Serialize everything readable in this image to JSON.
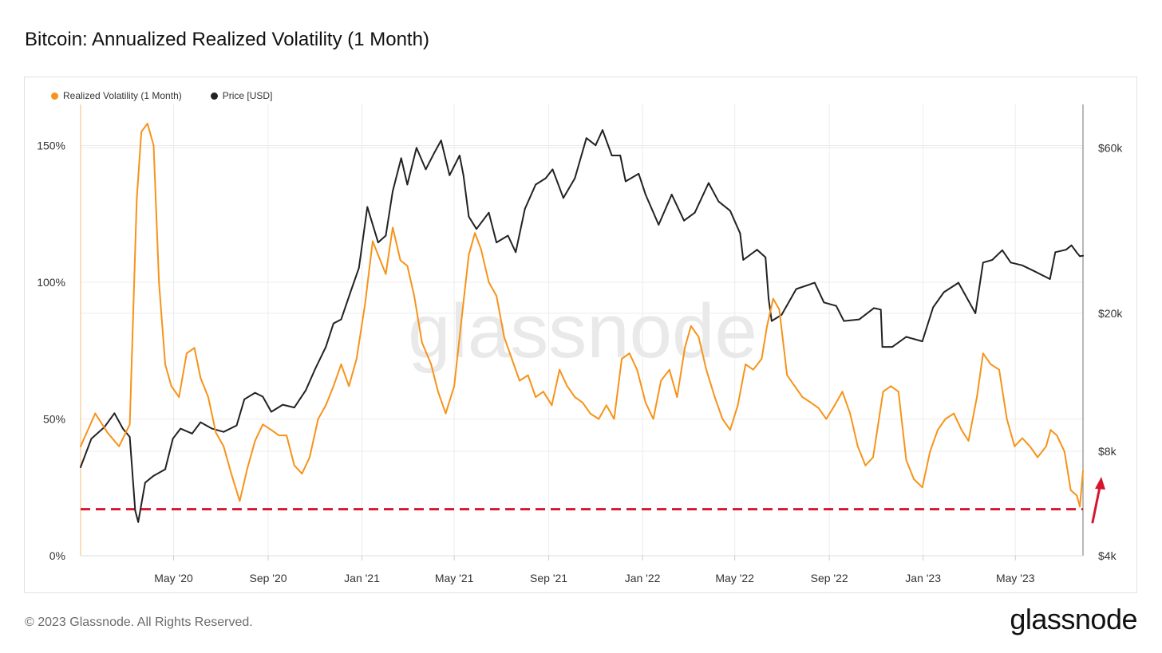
{
  "title": "Bitcoin: Annualized Realized Volatility (1 Month)",
  "footer": "© 2023 Glassnode. All Rights Reserved.",
  "brand": "glassnode",
  "watermark": "glassnode",
  "colors": {
    "volatility": "#f7931a",
    "price": "#222222",
    "threshold": "#d6152e",
    "arrow": "#d6152e",
    "grid": "#ececec"
  },
  "chart_data": {
    "type": "line",
    "grid": true,
    "legend_position": "top-left",
    "x_ticks": [
      "May '20",
      "Sep '20",
      "Jan '21",
      "May '21",
      "Sep '21",
      "Jan '22",
      "May '22",
      "Sep '22",
      "Jan '23",
      "May '23"
    ],
    "x_tick_dates": [
      "2020-05-01",
      "2020-09-01",
      "2021-01-01",
      "2021-05-01",
      "2021-09-01",
      "2022-01-01",
      "2022-05-01",
      "2022-09-01",
      "2023-01-01",
      "2023-05-01"
    ],
    "x_range": [
      "2020-01-01",
      "2023-07-28"
    ],
    "y_left": {
      "ticks": [
        "0%",
        "50%",
        "100%",
        "150%"
      ],
      "tick_values": [
        0,
        50,
        100,
        150
      ],
      "range": [
        0,
        165
      ]
    },
    "y_right": {
      "scale": "log",
      "ticks": [
        "$4k",
        "$8k",
        "$20k",
        "$60k"
      ],
      "tick_values": [
        4000,
        8000,
        20000,
        60000
      ],
      "range": [
        4000,
        80000
      ]
    },
    "threshold": {
      "value": 17,
      "axis": "left",
      "style": "dashed"
    },
    "series": [
      {
        "name": "Realized Volatility (1 Month)",
        "axis": "left",
        "points": [
          [
            "2020-01-01",
            40
          ],
          [
            "2020-01-20",
            52
          ],
          [
            "2020-02-05",
            45
          ],
          [
            "2020-02-20",
            40
          ],
          [
            "2020-03-05",
            48
          ],
          [
            "2020-03-14",
            130
          ],
          [
            "2020-03-20",
            155
          ],
          [
            "2020-03-28",
            158
          ],
          [
            "2020-04-05",
            150
          ],
          [
            "2020-04-12",
            100
          ],
          [
            "2020-04-20",
            70
          ],
          [
            "2020-04-28",
            62
          ],
          [
            "2020-05-08",
            58
          ],
          [
            "2020-05-18",
            74
          ],
          [
            "2020-05-28",
            76
          ],
          [
            "2020-06-05",
            65
          ],
          [
            "2020-06-15",
            58
          ],
          [
            "2020-06-25",
            45
          ],
          [
            "2020-07-05",
            40
          ],
          [
            "2020-07-15",
            30
          ],
          [
            "2020-07-26",
            20
          ],
          [
            "2020-08-05",
            32
          ],
          [
            "2020-08-15",
            42
          ],
          [
            "2020-08-25",
            48
          ],
          [
            "2020-09-05",
            46
          ],
          [
            "2020-09-15",
            44
          ],
          [
            "2020-09-25",
            44
          ],
          [
            "2020-10-05",
            33
          ],
          [
            "2020-10-15",
            30
          ],
          [
            "2020-10-25",
            36
          ],
          [
            "2020-11-05",
            50
          ],
          [
            "2020-11-15",
            55
          ],
          [
            "2020-11-25",
            62
          ],
          [
            "2020-12-05",
            70
          ],
          [
            "2020-12-15",
            62
          ],
          [
            "2020-12-25",
            72
          ],
          [
            "2021-01-05",
            92
          ],
          [
            "2021-01-15",
            115
          ],
          [
            "2021-01-22",
            110
          ],
          [
            "2021-02-01",
            103
          ],
          [
            "2021-02-10",
            120
          ],
          [
            "2021-02-20",
            108
          ],
          [
            "2021-03-01",
            106
          ],
          [
            "2021-03-10",
            95
          ],
          [
            "2021-03-20",
            78
          ],
          [
            "2021-04-01",
            70
          ],
          [
            "2021-04-10",
            60
          ],
          [
            "2021-04-20",
            52
          ],
          [
            "2021-05-01",
            62
          ],
          [
            "2021-05-12",
            90
          ],
          [
            "2021-05-20",
            110
          ],
          [
            "2021-05-28",
            118
          ],
          [
            "2021-06-05",
            112
          ],
          [
            "2021-06-15",
            100
          ],
          [
            "2021-06-25",
            95
          ],
          [
            "2021-07-05",
            80
          ],
          [
            "2021-07-15",
            72
          ],
          [
            "2021-07-25",
            64
          ],
          [
            "2021-08-05",
            66
          ],
          [
            "2021-08-15",
            58
          ],
          [
            "2021-08-25",
            60
          ],
          [
            "2021-09-05",
            55
          ],
          [
            "2021-09-15",
            68
          ],
          [
            "2021-09-25",
            62
          ],
          [
            "2021-10-05",
            58
          ],
          [
            "2021-10-15",
            56
          ],
          [
            "2021-10-25",
            52
          ],
          [
            "2021-11-05",
            50
          ],
          [
            "2021-11-15",
            55
          ],
          [
            "2021-11-25",
            50
          ],
          [
            "2021-12-05",
            72
          ],
          [
            "2021-12-15",
            74
          ],
          [
            "2021-12-25",
            68
          ],
          [
            "2022-01-05",
            56
          ],
          [
            "2022-01-15",
            50
          ],
          [
            "2022-01-25",
            64
          ],
          [
            "2022-02-05",
            68
          ],
          [
            "2022-02-15",
            58
          ],
          [
            "2022-02-25",
            76
          ],
          [
            "2022-03-05",
            84
          ],
          [
            "2022-03-15",
            80
          ],
          [
            "2022-03-25",
            68
          ],
          [
            "2022-04-05",
            58
          ],
          [
            "2022-04-15",
            50
          ],
          [
            "2022-04-25",
            46
          ],
          [
            "2022-05-05",
            55
          ],
          [
            "2022-05-15",
            70
          ],
          [
            "2022-05-25",
            68
          ],
          [
            "2022-06-05",
            72
          ],
          [
            "2022-06-12",
            84
          ],
          [
            "2022-06-20",
            94
          ],
          [
            "2022-06-28",
            90
          ],
          [
            "2022-07-08",
            66
          ],
          [
            "2022-07-18",
            62
          ],
          [
            "2022-07-28",
            58
          ],
          [
            "2022-08-08",
            56
          ],
          [
            "2022-08-18",
            54
          ],
          [
            "2022-08-28",
            50
          ],
          [
            "2022-09-08",
            55
          ],
          [
            "2022-09-18",
            60
          ],
          [
            "2022-09-28",
            52
          ],
          [
            "2022-10-08",
            40
          ],
          [
            "2022-10-18",
            33
          ],
          [
            "2022-10-28",
            36
          ],
          [
            "2022-11-10",
            60
          ],
          [
            "2022-11-20",
            62
          ],
          [
            "2022-11-30",
            60
          ],
          [
            "2022-12-10",
            35
          ],
          [
            "2022-12-20",
            28
          ],
          [
            "2022-12-31",
            25
          ],
          [
            "2023-01-10",
            38
          ],
          [
            "2023-01-20",
            46
          ],
          [
            "2023-01-30",
            50
          ],
          [
            "2023-02-10",
            52
          ],
          [
            "2023-02-20",
            46
          ],
          [
            "2023-03-01",
            42
          ],
          [
            "2023-03-12",
            58
          ],
          [
            "2023-03-20",
            74
          ],
          [
            "2023-03-30",
            70
          ],
          [
            "2023-04-10",
            68
          ],
          [
            "2023-04-20",
            50
          ],
          [
            "2023-04-30",
            40
          ],
          [
            "2023-05-10",
            43
          ],
          [
            "2023-05-20",
            40
          ],
          [
            "2023-05-30",
            36
          ],
          [
            "2023-06-10",
            40
          ],
          [
            "2023-06-16",
            46
          ],
          [
            "2023-06-24",
            44
          ],
          [
            "2023-07-04",
            38
          ],
          [
            "2023-07-12",
            24
          ],
          [
            "2023-07-20",
            22
          ],
          [
            "2023-07-24",
            18
          ],
          [
            "2023-07-28",
            31
          ]
        ]
      },
      {
        "name": "Price [USD]",
        "axis": "right",
        "points": [
          [
            "2020-01-01",
            7200
          ],
          [
            "2020-01-15",
            8700
          ],
          [
            "2020-02-01",
            9400
          ],
          [
            "2020-02-14",
            10300
          ],
          [
            "2020-02-25",
            9300
          ],
          [
            "2020-03-05",
            8800
          ],
          [
            "2020-03-12",
            5400
          ],
          [
            "2020-03-16",
            5000
          ],
          [
            "2020-03-25",
            6500
          ],
          [
            "2020-04-05",
            6800
          ],
          [
            "2020-04-20",
            7100
          ],
          [
            "2020-04-30",
            8700
          ],
          [
            "2020-05-10",
            9300
          ],
          [
            "2020-05-25",
            9000
          ],
          [
            "2020-06-05",
            9700
          ],
          [
            "2020-06-20",
            9300
          ],
          [
            "2020-07-05",
            9100
          ],
          [
            "2020-07-22",
            9500
          ],
          [
            "2020-08-01",
            11300
          ],
          [
            "2020-08-15",
            11800
          ],
          [
            "2020-08-25",
            11500
          ],
          [
            "2020-09-05",
            10400
          ],
          [
            "2020-09-20",
            10900
          ],
          [
            "2020-10-05",
            10700
          ],
          [
            "2020-10-20",
            12000
          ],
          [
            "2020-11-01",
            13800
          ],
          [
            "2020-11-15",
            16000
          ],
          [
            "2020-11-25",
            18700
          ],
          [
            "2020-12-05",
            19200
          ],
          [
            "2020-12-17",
            23000
          ],
          [
            "2020-12-28",
            27000
          ],
          [
            "2021-01-08",
            40500
          ],
          [
            "2021-01-22",
            32000
          ],
          [
            "2021-02-01",
            33500
          ],
          [
            "2021-02-10",
            45000
          ],
          [
            "2021-02-21",
            56000
          ],
          [
            "2021-03-01",
            47000
          ],
          [
            "2021-03-13",
            60000
          ],
          [
            "2021-03-25",
            52000
          ],
          [
            "2021-04-05",
            58000
          ],
          [
            "2021-04-14",
            63000
          ],
          [
            "2021-04-25",
            50000
          ],
          [
            "2021-05-08",
            57000
          ],
          [
            "2021-05-13",
            50000
          ],
          [
            "2021-05-20",
            38000
          ],
          [
            "2021-05-30",
            35000
          ],
          [
            "2021-06-15",
            39000
          ],
          [
            "2021-06-25",
            32000
          ],
          [
            "2021-07-10",
            33500
          ],
          [
            "2021-07-20",
            30000
          ],
          [
            "2021-08-01",
            40000
          ],
          [
            "2021-08-15",
            47000
          ],
          [
            "2021-08-28",
            49000
          ],
          [
            "2021-09-06",
            52000
          ],
          [
            "2021-09-20",
            43000
          ],
          [
            "2021-10-05",
            49000
          ],
          [
            "2021-10-20",
            64000
          ],
          [
            "2021-11-01",
            61000
          ],
          [
            "2021-11-10",
            67500
          ],
          [
            "2021-11-22",
            57000
          ],
          [
            "2021-12-03",
            57000
          ],
          [
            "2021-12-10",
            48000
          ],
          [
            "2021-12-27",
            50500
          ],
          [
            "2022-01-05",
            44000
          ],
          [
            "2022-01-22",
            36000
          ],
          [
            "2022-02-08",
            44000
          ],
          [
            "2022-02-24",
            37000
          ],
          [
            "2022-03-10",
            39000
          ],
          [
            "2022-03-28",
            47500
          ],
          [
            "2022-04-10",
            42000
          ],
          [
            "2022-04-25",
            39500
          ],
          [
            "2022-05-08",
            34000
          ],
          [
            "2022-05-12",
            28500
          ],
          [
            "2022-05-30",
            30500
          ],
          [
            "2022-06-10",
            29000
          ],
          [
            "2022-06-14",
            22000
          ],
          [
            "2022-06-18",
            19000
          ],
          [
            "2022-07-01",
            19800
          ],
          [
            "2022-07-20",
            23500
          ],
          [
            "2022-08-13",
            24500
          ],
          [
            "2022-08-25",
            21500
          ],
          [
            "2022-09-10",
            21000
          ],
          [
            "2022-09-20",
            19000
          ],
          [
            "2022-10-10",
            19200
          ],
          [
            "2022-10-29",
            20700
          ],
          [
            "2022-11-07",
            20500
          ],
          [
            "2022-11-09",
            16000
          ],
          [
            "2022-11-22",
            16000
          ],
          [
            "2022-12-10",
            17100
          ],
          [
            "2022-12-31",
            16600
          ],
          [
            "2023-01-14",
            20800
          ],
          [
            "2023-01-28",
            23000
          ],
          [
            "2023-02-16",
            24500
          ],
          [
            "2023-03-10",
            20000
          ],
          [
            "2023-03-20",
            28000
          ],
          [
            "2023-04-01",
            28500
          ],
          [
            "2023-04-14",
            30400
          ],
          [
            "2023-04-25",
            28000
          ],
          [
            "2023-05-10",
            27500
          ],
          [
            "2023-05-25",
            26500
          ],
          [
            "2023-06-15",
            25100
          ],
          [
            "2023-06-22",
            30000
          ],
          [
            "2023-07-06",
            30500
          ],
          [
            "2023-07-13",
            31400
          ],
          [
            "2023-07-20",
            29900
          ],
          [
            "2023-07-24",
            29200
          ],
          [
            "2023-07-28",
            29300
          ]
        ]
      }
    ]
  }
}
